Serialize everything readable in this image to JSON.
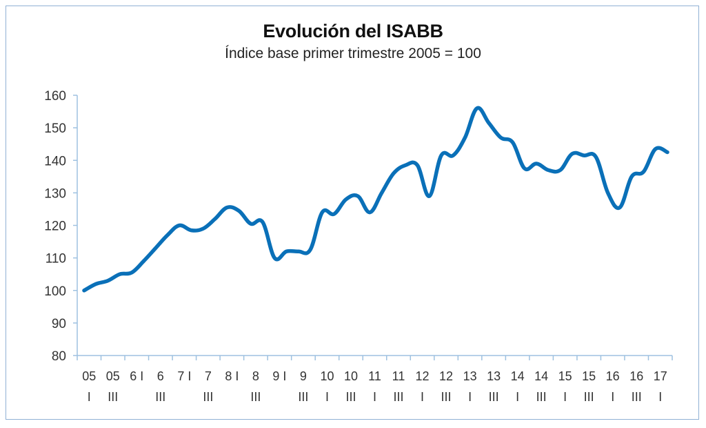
{
  "chart_data": {
    "type": "line",
    "title": "Evolución del ISABB",
    "subtitle": "Índice base primer trimestre 2005 = 100",
    "xlabel": "",
    "ylabel": "",
    "ylim": [
      80,
      160
    ],
    "yticks": [
      80,
      90,
      100,
      110,
      120,
      130,
      140,
      150,
      160
    ],
    "grid": false,
    "line_color": "#0a70b8",
    "axis_color": "#9ec1e0",
    "x_labels": [
      {
        "top": "05",
        "bottom": "I"
      },
      {
        "top": "05",
        "bottom": "III"
      },
      {
        "top": "6 I",
        "bottom": ""
      },
      {
        "top": "6",
        "bottom": "III"
      },
      {
        "top": "7 I",
        "bottom": ""
      },
      {
        "top": "7",
        "bottom": "III"
      },
      {
        "top": "8 I",
        "bottom": ""
      },
      {
        "top": "8",
        "bottom": "III"
      },
      {
        "top": "9 I",
        "bottom": ""
      },
      {
        "top": "9",
        "bottom": "III"
      },
      {
        "top": "10",
        "bottom": "I"
      },
      {
        "top": "10",
        "bottom": "III"
      },
      {
        "top": "11",
        "bottom": "I"
      },
      {
        "top": "11",
        "bottom": "III"
      },
      {
        "top": "12",
        "bottom": "I"
      },
      {
        "top": "12",
        "bottom": "III"
      },
      {
        "top": "13",
        "bottom": "I"
      },
      {
        "top": "13",
        "bottom": "III"
      },
      {
        "top": "14",
        "bottom": "I"
      },
      {
        "top": "14",
        "bottom": "III"
      },
      {
        "top": "15",
        "bottom": "I"
      },
      {
        "top": "15",
        "bottom": "III"
      },
      {
        "top": "16",
        "bottom": "I"
      },
      {
        "top": "16",
        "bottom": "III"
      },
      {
        "top": "17",
        "bottom": "I"
      }
    ],
    "series": [
      {
        "values": [
          100,
          102,
          103,
          105,
          105.5,
          109,
          113,
          117,
          120,
          118.5,
          119,
          122,
          125.5,
          124.5,
          120.5,
          121,
          110,
          112,
          112,
          112.5,
          124,
          123.5,
          128,
          129,
          124,
          130,
          136,
          138.5,
          138.5,
          129,
          141.5,
          141.5,
          147,
          156,
          151.5,
          147,
          145.5,
          137.5,
          139,
          137,
          137,
          142,
          141.5,
          141,
          130,
          125.5,
          135,
          136.5,
          143.5,
          142.5
        ]
      }
    ]
  }
}
